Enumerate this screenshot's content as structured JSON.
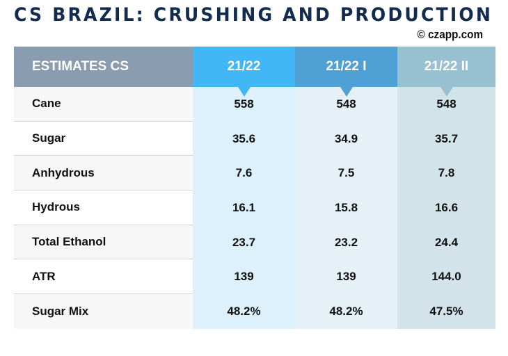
{
  "title": "CS BRAZIL: CRUSHING AND PRODUCTION",
  "credit": "© czapp.com",
  "table": {
    "headers": [
      "ESTIMATES CS",
      "21/22",
      "21/22 I",
      "21/22 II"
    ],
    "rows": [
      {
        "label": "Cane",
        "values": [
          "558",
          "548",
          "548"
        ]
      },
      {
        "label": "Sugar",
        "values": [
          "35.6",
          "34.9",
          "35.7"
        ]
      },
      {
        "label": "Anhydrous",
        "values": [
          "7.6",
          "7.5",
          "7.8"
        ]
      },
      {
        "label": "Hydrous",
        "values": [
          "16.1",
          "15.8",
          "16.6"
        ]
      },
      {
        "label": "Total Ethanol",
        "values": [
          "23.7",
          "23.2",
          "24.4"
        ]
      },
      {
        "label": "ATR",
        "values": [
          "139",
          "139",
          "144.0"
        ]
      },
      {
        "label": "Sugar Mix",
        "values": [
          "48.2%",
          "48.2%",
          "47.5%"
        ]
      }
    ]
  },
  "colors": {
    "title": "#132b4f",
    "header_label": "#8a9cb0",
    "col1": "#42b7f5",
    "col2": "#4fa0d5",
    "col3": "#97c0d1"
  }
}
